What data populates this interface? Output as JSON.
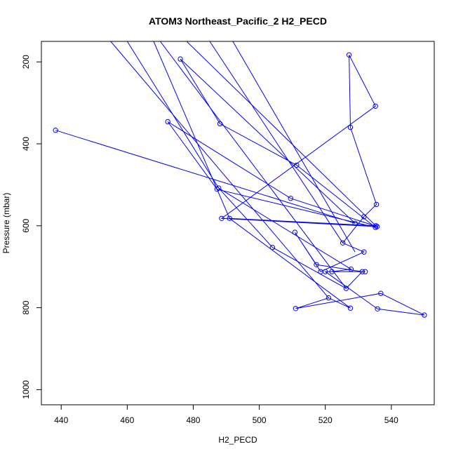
{
  "chart_data": {
    "type": "line",
    "title": "ATOM3 Northeast_Pacific_2 H2_PECD",
    "xlabel": "H2_PECD",
    "ylabel": "Pressure (mbar)",
    "xlim": [
      434,
      553
    ],
    "ylim": [
      1037,
      150
    ],
    "y_reversed": true,
    "x_ticks": [
      440,
      460,
      480,
      500,
      520,
      540
    ],
    "y_ticks": [
      200,
      400,
      600,
      800,
      1000
    ],
    "grid": false,
    "legend": "none",
    "series_color": "#0000ff",
    "series": [
      {
        "x": [
          438.3,
          529.0,
          476.1,
          488.1,
          511.3,
          535.2,
          487.2,
          472.3,
          509.5,
          535.7,
          488.6,
          535.2,
          527.2,
          527.6,
          535.5,
          531.7,
          525.3,
          531.7,
          518.6,
          510.8,
          517.3,
          531.2,
          526.3,
          504.0,
          487.7,
          527.8,
          522.0,
          532.1,
          520.0,
          535.8,
          550.0,
          536.8,
          511.0,
          521.0,
          527.6,
          491.0,
          535.3
        ],
        "y": [
          367,
          594,
          193,
          351,
          452,
          604,
          511,
          346,
          533,
          602,
          582,
          308,
          183,
          360,
          548,
          578,
          642,
          664,
          712,
          616,
          695,
          712,
          753,
          653,
          508,
          706,
          712,
          712,
          712,
          803,
          818,
          765,
          802,
          776,
          801,
          582,
          600
        ]
      }
    ],
    "offchart_segments": [
      {
        "x": [
          468,
          491.0
        ],
        "y": [
          150,
          582
        ]
      },
      {
        "x": [
          478,
          535.3
        ],
        "y": [
          150,
          600
        ]
      },
      {
        "x": [
          485,
          525.3
        ],
        "y": [
          150,
          642
        ]
      },
      {
        "x": [
          492,
          529.0
        ],
        "y": [
          150,
          664
        ]
      },
      {
        "x": [
          455,
          521.0
        ],
        "y": [
          150,
          776
        ]
      },
      {
        "x": [
          460,
          487.7
        ],
        "y": [
          150,
          508
        ]
      },
      {
        "x": [
          470,
          526.3
        ],
        "y": [
          150,
          753
        ]
      }
    ]
  }
}
